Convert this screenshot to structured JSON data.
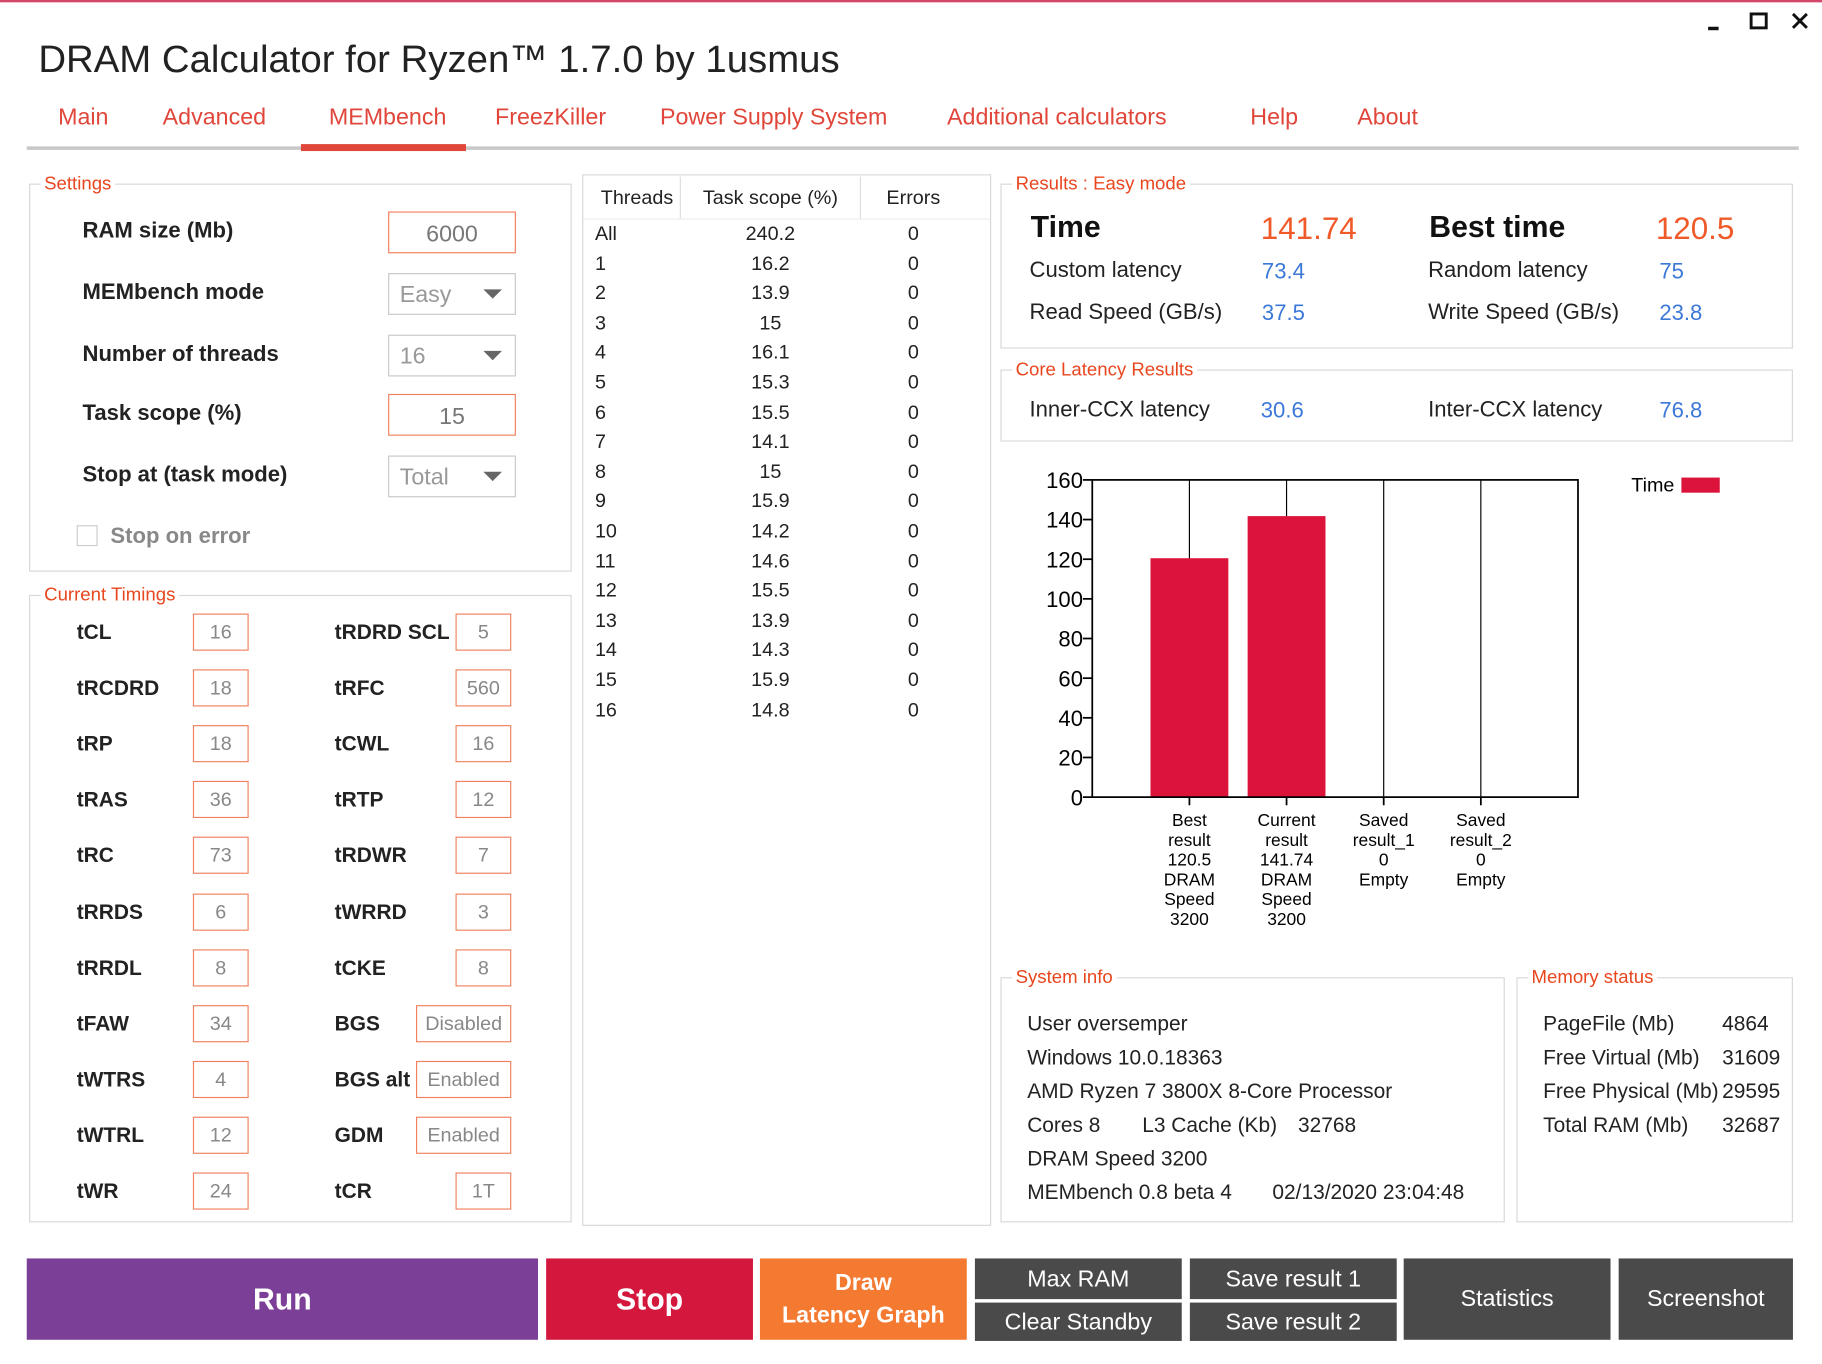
{
  "window": {
    "title": "DRAM Calculator for Ryzen™ 1.7.0 by 1usmus"
  },
  "tabs": {
    "items": [
      "Main",
      "Advanced",
      "MEMbench",
      "FreezKiller",
      "Power Supply System",
      "Additional calculators",
      "Help",
      "About"
    ],
    "active": 2
  },
  "settings": {
    "legend": "Settings",
    "fields": [
      {
        "label": "RAM size (Mb)",
        "value": "6000",
        "kind": "input"
      },
      {
        "label": "MEMbench mode",
        "value": "Easy",
        "kind": "select"
      },
      {
        "label": "Number of threads",
        "value": "16",
        "kind": "select"
      },
      {
        "label": "Task scope (%)",
        "value": "15",
        "kind": "input"
      },
      {
        "label": "Stop at (task mode)",
        "value": "Total",
        "kind": "select"
      }
    ],
    "checkbox": "Stop on error"
  },
  "timings": {
    "legend": "Current Timings",
    "left": [
      {
        "name": "tCL",
        "value": "16"
      },
      {
        "name": "tRCDRD",
        "value": "18"
      },
      {
        "name": "tRP",
        "value": "18"
      },
      {
        "name": "tRAS",
        "value": "36"
      },
      {
        "name": "tRC",
        "value": "73"
      },
      {
        "name": "tRRDS",
        "value": "6"
      },
      {
        "name": "tRRDL",
        "value": "8"
      },
      {
        "name": "tFAW",
        "value": "34"
      },
      {
        "name": "tWTRS",
        "value": "4"
      },
      {
        "name": "tWTRL",
        "value": "12"
      },
      {
        "name": "tWR",
        "value": "24"
      }
    ],
    "right": [
      {
        "name": "tRDRD SCL",
        "value": "5"
      },
      {
        "name": "tRFC",
        "value": "560"
      },
      {
        "name": "tCWL",
        "value": "16"
      },
      {
        "name": "tRTP",
        "value": "12"
      },
      {
        "name": "tRDWR",
        "value": "7"
      },
      {
        "name": "tWRRD",
        "value": "3"
      },
      {
        "name": "tCKE",
        "value": "8"
      },
      {
        "name": "BGS",
        "value": "Disabled"
      },
      {
        "name": "BGS alt",
        "value": "Enabled"
      },
      {
        "name": "GDM",
        "value": "Enabled"
      },
      {
        "name": "tCR",
        "value": "1T"
      }
    ]
  },
  "threads": {
    "headers": [
      "Threads",
      "Task scope (%)",
      "Errors"
    ],
    "rows": [
      [
        "All",
        "240.2",
        "0"
      ],
      [
        "1",
        "16.2",
        "0"
      ],
      [
        "2",
        "13.9",
        "0"
      ],
      [
        "3",
        "15",
        "0"
      ],
      [
        "4",
        "16.1",
        "0"
      ],
      [
        "5",
        "15.3",
        "0"
      ],
      [
        "6",
        "15.5",
        "0"
      ],
      [
        "7",
        "14.1",
        "0"
      ],
      [
        "8",
        "15",
        "0"
      ],
      [
        "9",
        "15.9",
        "0"
      ],
      [
        "10",
        "14.2",
        "0"
      ],
      [
        "11",
        "14.6",
        "0"
      ],
      [
        "12",
        "15.5",
        "0"
      ],
      [
        "13",
        "13.9",
        "0"
      ],
      [
        "14",
        "14.3",
        "0"
      ],
      [
        "15",
        "15.9",
        "0"
      ],
      [
        "16",
        "14.8",
        "0"
      ]
    ]
  },
  "results": {
    "legend": "Results : Easy mode",
    "main": [
      {
        "label": "Time",
        "value": "141.74"
      },
      {
        "label": "Best time",
        "value": "120.5"
      }
    ],
    "items": [
      {
        "label": "Custom latency",
        "value": "73.4"
      },
      {
        "label": "Random latency",
        "value": "75"
      },
      {
        "label": "Read Speed (GB/s)",
        "value": "37.5"
      },
      {
        "label": "Write Speed (GB/s)",
        "value": "23.8"
      }
    ]
  },
  "core_latency": {
    "legend": "Core Latency Results",
    "items": [
      {
        "label": "Inner-CCX latency",
        "value": "30.6"
      },
      {
        "label": "Inter-CCX latency",
        "value": "76.8"
      }
    ]
  },
  "chart_data": {
    "type": "bar",
    "categories": [
      [
        "Best",
        "result",
        "120.5",
        "DRAM",
        "Speed",
        "3200"
      ],
      [
        "Current",
        "result",
        "141.74",
        "DRAM",
        "Speed",
        "3200"
      ],
      [
        "Saved",
        "result_1",
        "0",
        "Empty"
      ],
      [
        "Saved",
        "result_2",
        "0",
        "Empty"
      ]
    ],
    "series": [
      {
        "name": "Time",
        "color": "#dc143c",
        "values": [
          120.5,
          141.74,
          0,
          0
        ]
      }
    ],
    "ylim": [
      0,
      160
    ],
    "yticks": [
      0,
      20,
      40,
      60,
      80,
      100,
      120,
      140,
      160
    ],
    "grid": true
  },
  "system_info": {
    "legend": "System info",
    "rows": [
      [
        "User oversemper"
      ],
      [
        "Windows 10.0.18363"
      ],
      [
        "AMD Ryzen 7 3800X 8-Core Processor"
      ],
      [
        "Cores 8",
        "L3 Cache (Kb)",
        "32768"
      ],
      [
        "DRAM Speed 3200"
      ],
      [
        "MEMbench 0.8 beta 4",
        "02/13/2020 23:04:48"
      ]
    ]
  },
  "memory_status": {
    "legend": "Memory status",
    "rows": [
      [
        "PageFile (Mb)",
        "4864"
      ],
      [
        "Free Virtual (Mb)",
        "31609"
      ],
      [
        "Free Physical (Mb)",
        "29595"
      ],
      [
        "Total RAM (Mb)",
        "32687"
      ]
    ]
  },
  "buttons": [
    {
      "lines": [
        "Run"
      ]
    },
    {
      "lines": [
        "Stop"
      ]
    },
    {
      "lines": [
        "Draw",
        "Latency Graph"
      ]
    },
    {
      "lines": [
        "Max RAM"
      ]
    },
    {
      "lines": [
        "Clear Standby"
      ]
    },
    {
      "lines": [
        "Save result 1"
      ]
    },
    {
      "lines": [
        "Save result 2"
      ]
    },
    {
      "lines": [
        "Statistics"
      ]
    },
    {
      "lines": [
        "Screenshot"
      ]
    }
  ]
}
